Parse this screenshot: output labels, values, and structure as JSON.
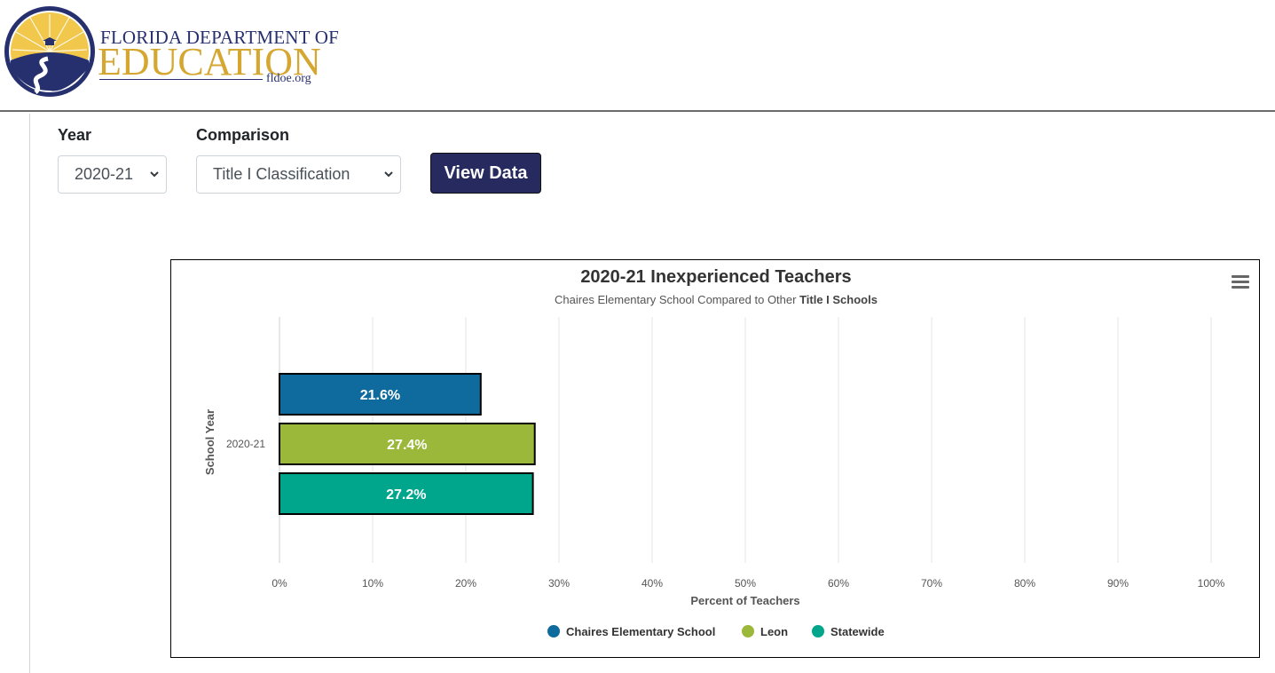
{
  "header": {
    "logo": {
      "line1": "FLORIDA DEPARTMENT OF",
      "line2": "EDUCATION",
      "line3": "fldoe.org"
    }
  },
  "filters": {
    "year_label": "Year",
    "year_value": "2020-21",
    "comparison_label": "Comparison",
    "comparison_value": "Title I Classification",
    "view_button": "View Data"
  },
  "colors": {
    "brand_navy": "#262a5e",
    "logo_gold": "#d5a731",
    "series_1": "#0f6a9d",
    "series_2": "#9bb83a",
    "series_3": "#00a68c"
  },
  "chart_data": {
    "type": "bar",
    "orientation": "horizontal",
    "title": "2020-21 Inexperienced Teachers",
    "subtitle_prefix": "Chaires Elementary School Compared to Other ",
    "subtitle_bold": "Title I Schools",
    "xlabel": "Percent of Teachers",
    "ylabel": "School Year",
    "categories": [
      "2020-21"
    ],
    "xlim": [
      0,
      100
    ],
    "x_ticks": [
      "0%",
      "10%",
      "20%",
      "30%",
      "40%",
      "50%",
      "60%",
      "70%",
      "80%",
      "90%",
      "100%"
    ],
    "grid": true,
    "legend_position": "bottom",
    "series": [
      {
        "name": "Chaires Elementary School",
        "values": [
          21.6
        ],
        "label": "21.6%",
        "color": "#0f6a9d"
      },
      {
        "name": "Leon",
        "values": [
          27.4
        ],
        "label": "27.4%",
        "color": "#9bb83a"
      },
      {
        "name": "Statewide",
        "values": [
          27.2
        ],
        "label": "27.2%",
        "color": "#00a68c"
      }
    ]
  }
}
